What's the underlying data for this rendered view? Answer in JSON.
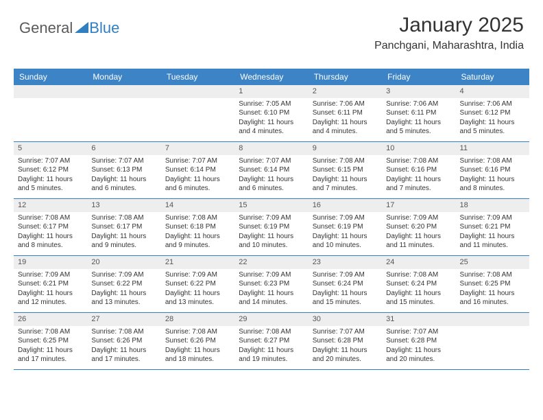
{
  "logo": {
    "text1": "General",
    "text2": "Blue"
  },
  "title": "January 2025",
  "subtitle": "Panchgani, Maharashtra, India",
  "colors": {
    "header_bg": "#3c84c6",
    "header_text": "#ffffff",
    "daynum_bg": "#eeeeee",
    "week_border": "#2f7fc2",
    "text": "#333333",
    "background": "#ffffff"
  },
  "dayHeaders": [
    "Sunday",
    "Monday",
    "Tuesday",
    "Wednesday",
    "Thursday",
    "Friday",
    "Saturday"
  ],
  "weeks": [
    [
      {
        "n": "",
        "sr": "",
        "ss": "",
        "dl1": "",
        "dl2": ""
      },
      {
        "n": "",
        "sr": "",
        "ss": "",
        "dl1": "",
        "dl2": ""
      },
      {
        "n": "",
        "sr": "",
        "ss": "",
        "dl1": "",
        "dl2": ""
      },
      {
        "n": "1",
        "sr": "Sunrise: 7:05 AM",
        "ss": "Sunset: 6:10 PM",
        "dl1": "Daylight: 11 hours",
        "dl2": "and 4 minutes."
      },
      {
        "n": "2",
        "sr": "Sunrise: 7:06 AM",
        "ss": "Sunset: 6:11 PM",
        "dl1": "Daylight: 11 hours",
        "dl2": "and 4 minutes."
      },
      {
        "n": "3",
        "sr": "Sunrise: 7:06 AM",
        "ss": "Sunset: 6:11 PM",
        "dl1": "Daylight: 11 hours",
        "dl2": "and 5 minutes."
      },
      {
        "n": "4",
        "sr": "Sunrise: 7:06 AM",
        "ss": "Sunset: 6:12 PM",
        "dl1": "Daylight: 11 hours",
        "dl2": "and 5 minutes."
      }
    ],
    [
      {
        "n": "5",
        "sr": "Sunrise: 7:07 AM",
        "ss": "Sunset: 6:12 PM",
        "dl1": "Daylight: 11 hours",
        "dl2": "and 5 minutes."
      },
      {
        "n": "6",
        "sr": "Sunrise: 7:07 AM",
        "ss": "Sunset: 6:13 PM",
        "dl1": "Daylight: 11 hours",
        "dl2": "and 6 minutes."
      },
      {
        "n": "7",
        "sr": "Sunrise: 7:07 AM",
        "ss": "Sunset: 6:14 PM",
        "dl1": "Daylight: 11 hours",
        "dl2": "and 6 minutes."
      },
      {
        "n": "8",
        "sr": "Sunrise: 7:07 AM",
        "ss": "Sunset: 6:14 PM",
        "dl1": "Daylight: 11 hours",
        "dl2": "and 6 minutes."
      },
      {
        "n": "9",
        "sr": "Sunrise: 7:08 AM",
        "ss": "Sunset: 6:15 PM",
        "dl1": "Daylight: 11 hours",
        "dl2": "and 7 minutes."
      },
      {
        "n": "10",
        "sr": "Sunrise: 7:08 AM",
        "ss": "Sunset: 6:16 PM",
        "dl1": "Daylight: 11 hours",
        "dl2": "and 7 minutes."
      },
      {
        "n": "11",
        "sr": "Sunrise: 7:08 AM",
        "ss": "Sunset: 6:16 PM",
        "dl1": "Daylight: 11 hours",
        "dl2": "and 8 minutes."
      }
    ],
    [
      {
        "n": "12",
        "sr": "Sunrise: 7:08 AM",
        "ss": "Sunset: 6:17 PM",
        "dl1": "Daylight: 11 hours",
        "dl2": "and 8 minutes."
      },
      {
        "n": "13",
        "sr": "Sunrise: 7:08 AM",
        "ss": "Sunset: 6:17 PM",
        "dl1": "Daylight: 11 hours",
        "dl2": "and 9 minutes."
      },
      {
        "n": "14",
        "sr": "Sunrise: 7:08 AM",
        "ss": "Sunset: 6:18 PM",
        "dl1": "Daylight: 11 hours",
        "dl2": "and 9 minutes."
      },
      {
        "n": "15",
        "sr": "Sunrise: 7:09 AM",
        "ss": "Sunset: 6:19 PM",
        "dl1": "Daylight: 11 hours",
        "dl2": "and 10 minutes."
      },
      {
        "n": "16",
        "sr": "Sunrise: 7:09 AM",
        "ss": "Sunset: 6:19 PM",
        "dl1": "Daylight: 11 hours",
        "dl2": "and 10 minutes."
      },
      {
        "n": "17",
        "sr": "Sunrise: 7:09 AM",
        "ss": "Sunset: 6:20 PM",
        "dl1": "Daylight: 11 hours",
        "dl2": "and 11 minutes."
      },
      {
        "n": "18",
        "sr": "Sunrise: 7:09 AM",
        "ss": "Sunset: 6:21 PM",
        "dl1": "Daylight: 11 hours",
        "dl2": "and 11 minutes."
      }
    ],
    [
      {
        "n": "19",
        "sr": "Sunrise: 7:09 AM",
        "ss": "Sunset: 6:21 PM",
        "dl1": "Daylight: 11 hours",
        "dl2": "and 12 minutes."
      },
      {
        "n": "20",
        "sr": "Sunrise: 7:09 AM",
        "ss": "Sunset: 6:22 PM",
        "dl1": "Daylight: 11 hours",
        "dl2": "and 13 minutes."
      },
      {
        "n": "21",
        "sr": "Sunrise: 7:09 AM",
        "ss": "Sunset: 6:22 PM",
        "dl1": "Daylight: 11 hours",
        "dl2": "and 13 minutes."
      },
      {
        "n": "22",
        "sr": "Sunrise: 7:09 AM",
        "ss": "Sunset: 6:23 PM",
        "dl1": "Daylight: 11 hours",
        "dl2": "and 14 minutes."
      },
      {
        "n": "23",
        "sr": "Sunrise: 7:09 AM",
        "ss": "Sunset: 6:24 PM",
        "dl1": "Daylight: 11 hours",
        "dl2": "and 15 minutes."
      },
      {
        "n": "24",
        "sr": "Sunrise: 7:08 AM",
        "ss": "Sunset: 6:24 PM",
        "dl1": "Daylight: 11 hours",
        "dl2": "and 15 minutes."
      },
      {
        "n": "25",
        "sr": "Sunrise: 7:08 AM",
        "ss": "Sunset: 6:25 PM",
        "dl1": "Daylight: 11 hours",
        "dl2": "and 16 minutes."
      }
    ],
    [
      {
        "n": "26",
        "sr": "Sunrise: 7:08 AM",
        "ss": "Sunset: 6:25 PM",
        "dl1": "Daylight: 11 hours",
        "dl2": "and 17 minutes."
      },
      {
        "n": "27",
        "sr": "Sunrise: 7:08 AM",
        "ss": "Sunset: 6:26 PM",
        "dl1": "Daylight: 11 hours",
        "dl2": "and 17 minutes."
      },
      {
        "n": "28",
        "sr": "Sunrise: 7:08 AM",
        "ss": "Sunset: 6:26 PM",
        "dl1": "Daylight: 11 hours",
        "dl2": "and 18 minutes."
      },
      {
        "n": "29",
        "sr": "Sunrise: 7:08 AM",
        "ss": "Sunset: 6:27 PM",
        "dl1": "Daylight: 11 hours",
        "dl2": "and 19 minutes."
      },
      {
        "n": "30",
        "sr": "Sunrise: 7:07 AM",
        "ss": "Sunset: 6:28 PM",
        "dl1": "Daylight: 11 hours",
        "dl2": "and 20 minutes."
      },
      {
        "n": "31",
        "sr": "Sunrise: 7:07 AM",
        "ss": "Sunset: 6:28 PM",
        "dl1": "Daylight: 11 hours",
        "dl2": "and 20 minutes."
      },
      {
        "n": "",
        "sr": "",
        "ss": "",
        "dl1": "",
        "dl2": ""
      }
    ]
  ]
}
